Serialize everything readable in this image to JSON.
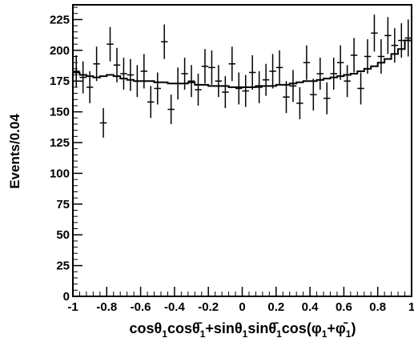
{
  "chart_data": {
    "type": "scatter",
    "xlabel": "",
    "ylabel": "Events/0.04",
    "xlim": [
      -1,
      1
    ],
    "ylim": [
      0,
      237
    ],
    "xticks": [
      {
        "value": -1,
        "label": "-1"
      },
      {
        "value": -0.8,
        "label": "-0.8"
      },
      {
        "value": -0.6,
        "label": "-0.6"
      },
      {
        "value": -0.4,
        "label": "-0.4"
      },
      {
        "value": -0.2,
        "label": "-0.2"
      },
      {
        "value": 0,
        "label": "0"
      },
      {
        "value": 0.2,
        "label": "0.2"
      },
      {
        "value": 0.4,
        "label": "0.4"
      },
      {
        "value": 0.6,
        "label": "0.6"
      },
      {
        "value": 0.8,
        "label": "0.8"
      },
      {
        "value": 1,
        "label": "1"
      }
    ],
    "yticks": [
      {
        "value": 0,
        "label": "0"
      },
      {
        "value": 25,
        "label": "25"
      },
      {
        "value": 50,
        "label": "50"
      },
      {
        "value": 75,
        "label": "75"
      },
      {
        "value": 100,
        "label": "100"
      },
      {
        "value": 125,
        "label": "125"
      },
      {
        "value": 150,
        "label": "150"
      },
      {
        "value": 175,
        "label": "175"
      },
      {
        "value": 200,
        "label": "200"
      },
      {
        "value": 225,
        "label": "225"
      }
    ],
    "grid": false,
    "legend": "none",
    "series": [
      {
        "kind": "points-with-error-bars",
        "x": [
          -0.98,
          -0.94,
          -0.9,
          -0.86,
          -0.82,
          -0.78,
          -0.74,
          -0.7,
          -0.66,
          -0.62,
          -0.58,
          -0.54,
          -0.5,
          -0.46,
          -0.42,
          -0.38,
          -0.34,
          -0.3,
          -0.26,
          -0.22,
          -0.18,
          -0.14,
          -0.1,
          -0.06,
          -0.02,
          0.02,
          0.06,
          0.1,
          0.14,
          0.18,
          0.22,
          0.26,
          0.3,
          0.34,
          0.38,
          0.42,
          0.46,
          0.5,
          0.54,
          0.58,
          0.62,
          0.66,
          0.7,
          0.74,
          0.78,
          0.82,
          0.86,
          0.9,
          0.94,
          0.98
        ],
        "y": [
          183,
          178,
          170,
          189,
          141,
          205,
          188,
          181,
          180,
          175,
          183,
          158,
          169,
          207,
          152,
          173,
          181,
          175,
          168,
          187,
          186,
          175,
          166,
          189,
          169,
          167,
          182,
          170,
          176,
          183,
          186,
          162,
          171,
          157,
          190,
          164,
          181,
          161,
          181,
          190,
          175,
          196,
          169,
          195,
          214,
          195,
          212,
          204,
          208,
          210
        ],
        "yerr": [
          13,
          13,
          13,
          14,
          12,
          14,
          14,
          13,
          13,
          13,
          14,
          13,
          13,
          14,
          12,
          13,
          13,
          13,
          13,
          14,
          14,
          13,
          13,
          14,
          13,
          13,
          14,
          13,
          13,
          14,
          14,
          13,
          13,
          13,
          14,
          13,
          13,
          13,
          13,
          14,
          13,
          14,
          13,
          14,
          15,
          14,
          15,
          14,
          14,
          15
        ],
        "color": "#000000"
      },
      {
        "kind": "step-histogram",
        "x": [
          -0.98,
          -0.94,
          -0.9,
          -0.86,
          -0.82,
          -0.78,
          -0.74,
          -0.7,
          -0.66,
          -0.62,
          -0.58,
          -0.54,
          -0.5,
          -0.46,
          -0.42,
          -0.38,
          -0.34,
          -0.3,
          -0.26,
          -0.22,
          -0.18,
          -0.14,
          -0.1,
          -0.06,
          -0.02,
          0.02,
          0.06,
          0.1,
          0.14,
          0.18,
          0.22,
          0.26,
          0.3,
          0.34,
          0.38,
          0.42,
          0.46,
          0.5,
          0.54,
          0.58,
          0.62,
          0.66,
          0.7,
          0.74,
          0.78,
          0.82,
          0.86,
          0.9,
          0.94,
          0.98
        ],
        "y": [
          182,
          180,
          179,
          178,
          179,
          180,
          179,
          177,
          176,
          175,
          175,
          175,
          174,
          174,
          173,
          173,
          173,
          174,
          172,
          172,
          171,
          171,
          171,
          170,
          170,
          170,
          170,
          171,
          171,
          171,
          172,
          172,
          173,
          174,
          175,
          175,
          176,
          177,
          178,
          179,
          180,
          181,
          183,
          185,
          187,
          190,
          193,
          197,
          201,
          208
        ],
        "color": "#000000"
      }
    ]
  }
}
